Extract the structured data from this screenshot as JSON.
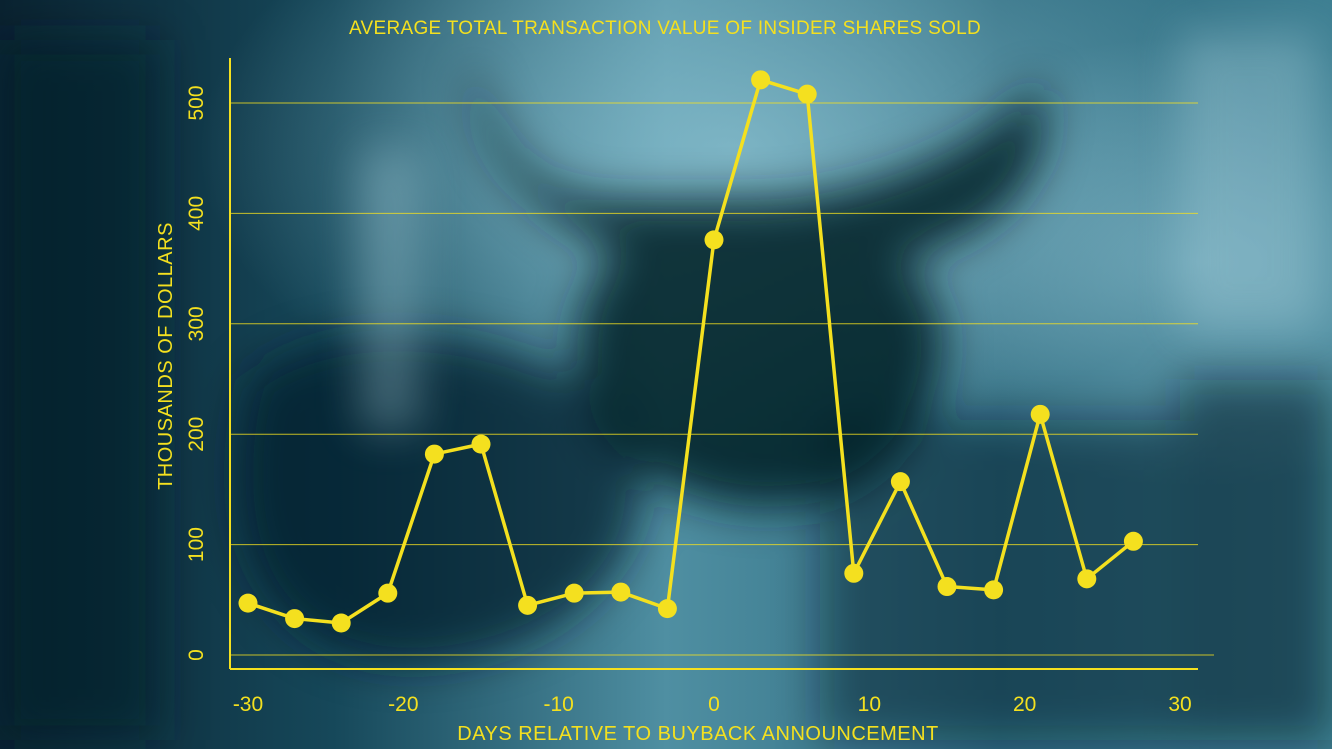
{
  "colors": {
    "accent": "#f4e01f",
    "background_dark": "#0b2a38",
    "background_mid": "#1f5f74",
    "background_light": "#6fa6b6"
  },
  "chart_data": {
    "type": "line",
    "title": "AVERAGE TOTAL TRANSACTION VALUE OF INSIDER SHARES SOLD",
    "xlabel": "DAYS RELATIVE TO BUYBACK ANNOUNCEMENT",
    "ylabel": "THOUSANDS OF DOLLARS",
    "xlim": [
      -30,
      30
    ],
    "ylim": [
      0,
      500
    ],
    "xticks": [
      -30,
      -20,
      -10,
      0,
      10,
      20,
      30
    ],
    "yticks": [
      0,
      100,
      200,
      300,
      400,
      500
    ],
    "grid": true,
    "x": [
      -30,
      -27,
      -24,
      -21,
      -18,
      -15,
      -12,
      -9,
      -6,
      -3,
      0,
      3,
      6,
      9,
      12,
      15,
      18,
      21,
      24,
      27
    ],
    "y": [
      47,
      33,
      29,
      56,
      182,
      191,
      45,
      56,
      57,
      42,
      376,
      521,
      508,
      74,
      157,
      62,
      59,
      218,
      69,
      103
    ]
  }
}
